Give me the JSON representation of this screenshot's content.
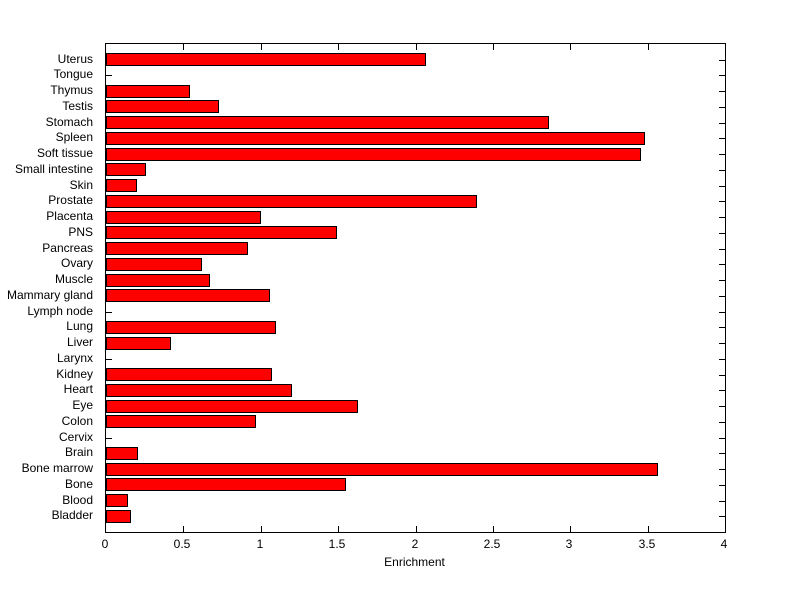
{
  "chart_data": {
    "type": "bar",
    "orientation": "horizontal",
    "title": "",
    "xlabel": "Enrichment",
    "ylabel": "",
    "xlim": [
      0,
      4
    ],
    "x_ticks": [
      0,
      0.5,
      1,
      1.5,
      2,
      2.5,
      3,
      3.5,
      4
    ],
    "x_tick_labels": [
      "0",
      "0.5",
      "1",
      "1.5",
      "2",
      "2.5",
      "3",
      "3.5",
      "4"
    ],
    "grid": false,
    "legend": null,
    "bar_color": "#ff0000",
    "bar_edge_color": "#000000",
    "axis_color": "#000000",
    "background_color": "#ffffff",
    "categories": [
      "Uterus",
      "Tongue",
      "Thymus",
      "Testis",
      "Stomach",
      "Spleen",
      "Soft tissue",
      "Small intestine",
      "Skin",
      "Prostate",
      "Placenta",
      "PNS",
      "Pancreas",
      "Ovary",
      "Muscle",
      "Mammary gland",
      "Lymph node",
      "Lung",
      "Liver",
      "Larynx",
      "Kidney",
      "Heart",
      "Eye",
      "Colon",
      "Cervix",
      "Brain",
      "Bone marrow",
      "Bone",
      "Blood",
      "Bladder"
    ],
    "values": [
      2.07,
      0,
      0.54,
      0.73,
      2.86,
      3.48,
      3.46,
      0.26,
      0.2,
      2.4,
      1.0,
      1.49,
      0.92,
      0.62,
      0.67,
      1.06,
      0,
      1.1,
      0.42,
      0,
      1.07,
      1.2,
      1.63,
      0.97,
      0,
      0.21,
      3.57,
      1.55,
      0.14,
      0.16
    ]
  }
}
